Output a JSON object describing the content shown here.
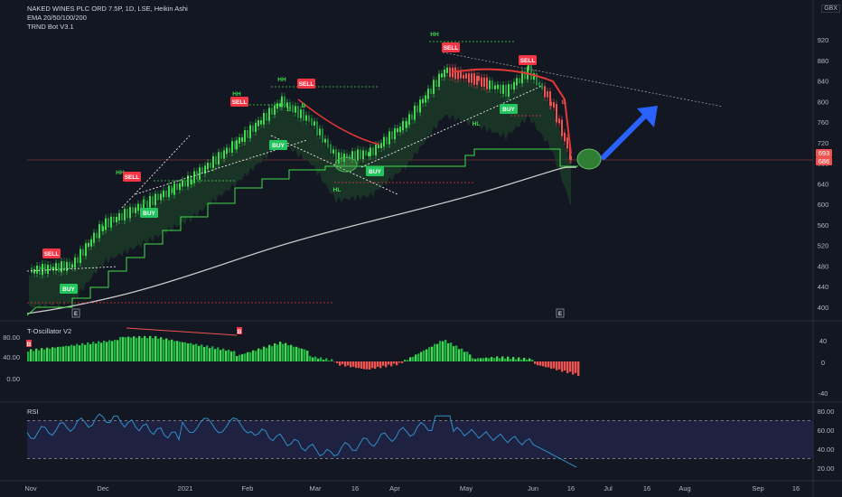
{
  "legend": {
    "symbol": "NAKED WINES PLC ORD 7.5P, 1D, LSE, Heikin Ashi",
    "ema": "EMA 20/50/100/200",
    "bot": "TRND Bot V3.1"
  },
  "currency": "GBX",
  "oscillator_title": "T-Oscillator V2",
  "rsi_title": "RSI",
  "colors": {
    "bull": "#26a69a",
    "bright_green": "#3ddc4a",
    "bear": "#ef5350",
    "blue_arrow": "#2962ff",
    "rsi_line": "#2f8fc9",
    "rsi_band": "#2a2a5a"
  },
  "chart_data": [
    {
      "type": "line",
      "panel": "price",
      "price_axis_ticks": [
        920,
        880,
        840,
        800,
        760,
        720,
        680,
        640,
        600,
        560,
        520,
        480,
        440,
        400
      ],
      "price_labels": [
        "693",
        "686"
      ],
      "time_axis_ticks": [
        "Nov",
        "Dec",
        "2021",
        "Feb",
        "Mar",
        "16",
        "Apr",
        "May",
        "Jun",
        "16",
        "Jul",
        "16",
        "Aug",
        "Sep",
        "16"
      ],
      "price_series": [
        {
          "date": "Nov 1",
          "value": 470
        },
        {
          "date": "Nov 20",
          "value": 482
        },
        {
          "date": "Dec 1",
          "value": 560
        },
        {
          "date": "Dec 20",
          "value": 600
        },
        {
          "date": "Jan 10",
          "value": 650
        },
        {
          "date": "Jan 30",
          "value": 720
        },
        {
          "date": "Feb 15",
          "value": 800
        },
        {
          "date": "Feb 28",
          "value": 760
        },
        {
          "date": "Mar 10",
          "value": 690
        },
        {
          "date": "Mar 25",
          "value": 700
        },
        {
          "date": "Apr 10",
          "value": 760
        },
        {
          "date": "Apr 25",
          "value": 860
        },
        {
          "date": "May 10",
          "value": 840
        },
        {
          "date": "May 25",
          "value": 820
        },
        {
          "date": "Jun 5",
          "value": 860
        },
        {
          "date": "Jun 12",
          "value": 800
        },
        {
          "date": "Jun 18",
          "value": 690
        }
      ],
      "annotations": [
        {
          "text": "SELL",
          "kind": "sell"
        },
        {
          "text": "BUY",
          "kind": "buy"
        },
        {
          "text": "HH",
          "kind": "label"
        },
        {
          "text": "SELL",
          "kind": "sell"
        },
        {
          "text": "BUY",
          "kind": "buy"
        },
        {
          "text": "B",
          "kind": "small"
        },
        {
          "text": "HH",
          "kind": "label"
        },
        {
          "text": "SELL",
          "kind": "sell"
        },
        {
          "text": "BUY",
          "kind": "buy"
        },
        {
          "text": "B",
          "kind": "small"
        },
        {
          "text": "HH",
          "kind": "label"
        },
        {
          "text": "SELL",
          "kind": "sell"
        },
        {
          "text": "B",
          "kind": "small"
        },
        {
          "text": "HL",
          "kind": "label"
        },
        {
          "text": "BUY",
          "kind": "buy"
        },
        {
          "text": "HH",
          "kind": "label"
        },
        {
          "text": "SELL",
          "kind": "sell"
        },
        {
          "text": "HL",
          "kind": "label"
        },
        {
          "text": "SELL",
          "kind": "sell"
        },
        {
          "text": "BUY",
          "kind": "buy"
        },
        {
          "text": "B",
          "kind": "small"
        },
        {
          "text": "E",
          "kind": "event"
        },
        {
          "text": "E",
          "kind": "event"
        }
      ]
    },
    {
      "type": "bar",
      "panel": "oscillator",
      "axis_ticks": [
        "40",
        "0",
        "-40"
      ],
      "left_labels": [
        "80.00",
        "40.00",
        "0.00"
      ],
      "marker": "B"
    },
    {
      "type": "line",
      "panel": "rsi",
      "axis_ticks": [
        "80.00",
        "60.00",
        "40.00",
        "20.00"
      ],
      "upper_band": 70,
      "lower_band": 30
    }
  ]
}
